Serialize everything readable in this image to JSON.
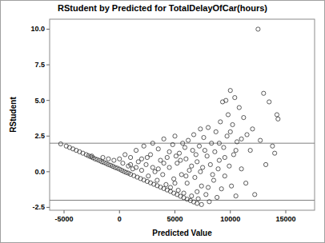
{
  "chart_data": {
    "type": "scatter",
    "title": "RStudent by Predicted for TotalDelayOfCar(hours)",
    "x_label": "Predicted Value",
    "y_label": "RStudent",
    "marker": "circle",
    "color": "#333333",
    "xlim": [
      -6300,
      17600
    ],
    "ylim": [
      -2.7,
      10.7
    ],
    "xticks": [
      -5000,
      0,
      5000,
      10000,
      15000
    ],
    "yticks": [
      -2.5,
      {
        "value": 0,
        "label": "0.0"
      },
      2.5,
      {
        "value": 5,
        "label": "5.0"
      },
      7.5,
      {
        "value": 10,
        "label": "10.0"
      }
    ],
    "hlines": [
      2,
      -2
    ],
    "grid": false,
    "x": [
      -5300,
      -4800,
      -4500,
      -4200,
      -3900,
      -3600,
      -3300,
      -3000,
      -2800,
      -2600,
      -2400,
      -2200,
      -2000,
      -1800,
      -1600,
      -1400,
      -1200,
      -1000,
      -800,
      -600,
      -400,
      -200,
      0,
      200,
      400,
      600,
      800,
      1000,
      1300,
      1600,
      1900,
      2200,
      2500,
      2800,
      3100,
      3400,
      3700,
      4000,
      4300,
      4600,
      4900,
      5200,
      5500,
      5800,
      6100,
      6400,
      6700,
      7000,
      7400,
      -2500,
      -1500,
      -1000,
      -500,
      0,
      300,
      500,
      800,
      1000,
      1200,
      1500,
      1700,
      2000,
      2200,
      2400,
      2600,
      2800,
      3000,
      3200,
      3400,
      3500,
      3700,
      3900,
      4000,
      4200,
      4300,
      4500,
      4600,
      4800,
      4900,
      5000,
      5200,
      5300,
      5400,
      5600,
      5700,
      5800,
      6000,
      6100,
      6200,
      6300,
      6500,
      6600,
      6700,
      6800,
      7000,
      7100,
      7200,
      7300,
      7400,
      7500,
      7600,
      7800,
      7900,
      8000,
      8100,
      8200,
      8300,
      8500,
      8600,
      8700,
      8800,
      9000,
      9100,
      9200,
      9300,
      9400,
      9500,
      9600,
      9700,
      9800,
      9900,
      10000,
      10100,
      10200,
      10300,
      10400,
      10500,
      10600,
      10800,
      11000,
      11200,
      11400,
      11500,
      11800,
      12000,
      12200,
      12500,
      12700,
      13000,
      13200,
      13500,
      13800,
      14000,
      14200,
      14300,
      1000,
      2000,
      3000,
      4000,
      5000,
      6000,
      7000,
      8000,
      6500,
      5500,
      4500,
      3500,
      2500,
      1500,
      7700,
      8400,
      9000,
      9500,
      10000,
      10500,
      11000,
      5100,
      5900,
      6900,
      7300,
      8900
    ],
    "values": [
      1.95,
      1.8,
      1.7,
      1.6,
      1.5,
      1.4,
      1.3,
      1.2,
      1.12,
      1.05,
      0.98,
      0.9,
      0.85,
      0.78,
      0.7,
      0.65,
      0.58,
      0.5,
      0.45,
      0.38,
      0.3,
      0.25,
      0.18,
      0.1,
      0.02,
      -0.05,
      -0.1,
      -0.18,
      -0.28,
      -0.38,
      -0.48,
      -0.58,
      -0.68,
      -0.78,
      -0.88,
      -0.98,
      -1.08,
      -1.18,
      -1.28,
      -1.38,
      -1.5,
      -1.6,
      -1.72,
      -1.82,
      -1.93,
      -2.02,
      -2.12,
      -2.22,
      -2.3,
      1.1,
      1.0,
      0.9,
      0.8,
      0.9,
      0.6,
      1.2,
      0.4,
      1.0,
      0.2,
      1.5,
      0.7,
      0.1,
      1.8,
      0.5,
      -0.3,
      1.2,
      2.0,
      0.0,
      -0.6,
      1.6,
      0.8,
      -0.2,
      2.3,
      -0.9,
      1.0,
      0.3,
      -1.1,
      1.9,
      -0.5,
      2.5,
      0.6,
      -1.3,
      1.3,
      -0.2,
      2.0,
      -1.5,
      0.9,
      -0.8,
      2.2,
      0.1,
      -1.7,
      1.5,
      2.6,
      -0.4,
      0.7,
      -1.9,
      1.8,
      3.0,
      -1.0,
      0.3,
      2.4,
      -1.6,
      1.1,
      3.1,
      -2.1,
      0.5,
      2.0,
      -0.6,
      1.4,
      2.8,
      -1.8,
      0.8,
      3.5,
      -1.2,
      4.9,
      1.7,
      -0.3,
      5.0,
      2.5,
      4.0,
      0.4,
      5.7,
      -1.0,
      3.3,
      1.2,
      5.2,
      -1.7,
      2.1,
      4.5,
      0.2,
      3.8,
      -0.8,
      2.6,
      1.5,
      3.0,
      -1.6,
      10.0,
      2.2,
      5.5,
      0.5,
      4.9,
      1.8,
      1.3,
      4.0,
      3.7,
      0.5,
      0.9,
      0.3,
      0.6,
      -0.8,
      -0.3,
      -1.4,
      -1.1,
      0.4,
      0.8,
      1.4,
      0.2,
      1.0,
      0.3,
      1.5,
      -0.2,
      2.0,
      1.0,
      2.8,
      1.5,
      2.3,
      1.1,
      1.7,
      1.2,
      0.0,
      0.2
    ]
  }
}
